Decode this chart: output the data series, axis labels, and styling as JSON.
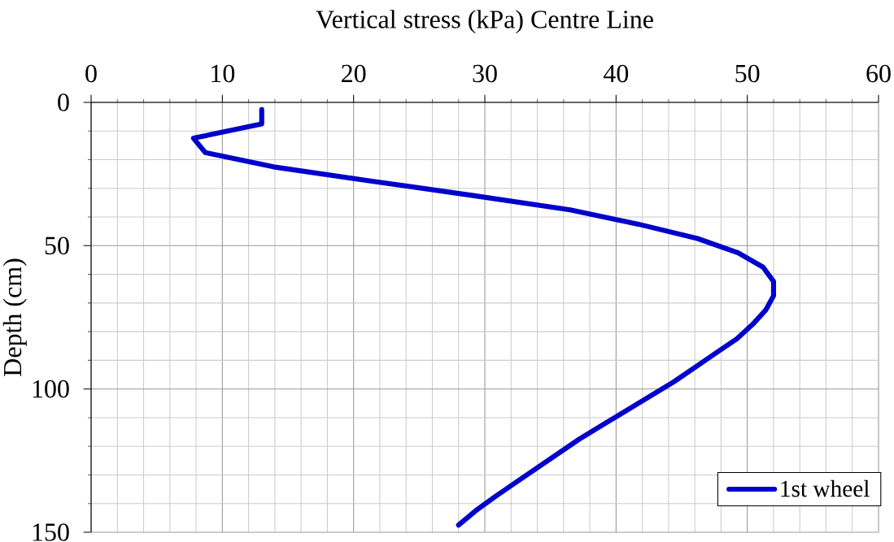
{
  "chart_data": {
    "type": "line",
    "xlabel": "Vertical stress (kPa) Centre Line",
    "ylabel": "Depth (cm)",
    "series": [
      {
        "name": "1st wheel",
        "color": "#0000cc",
        "x": [
          13,
          13,
          7.8,
          8.7,
          13.9,
          21.4,
          29.1,
          36.5,
          41.7,
          46.2,
          49.3,
          51.2,
          52,
          52,
          51.4,
          50.4,
          49.2,
          47.6,
          46,
          44.4,
          42.6,
          40.8,
          39,
          37.2,
          35.6,
          34,
          32.4,
          30.8,
          29.3,
          28
        ],
        "values": [
          2.5,
          7.5,
          12.5,
          17.5,
          22.5,
          27.5,
          32.5,
          37.5,
          42.5,
          47.5,
          52.5,
          57.5,
          62.5,
          67.5,
          72.5,
          77.5,
          82.5,
          87.5,
          92.5,
          97.5,
          102.5,
          107.5,
          112.5,
          117.5,
          122.5,
          127.5,
          132.5,
          137.5,
          142.5,
          147.5
        ]
      }
    ],
    "xlim": [
      0,
      60
    ],
    "xticks": [
      0,
      {
        "value": 2,
        "label": null
      },
      {
        "value": 4,
        "label": null
      },
      {
        "value": 6,
        "label": null
      },
      {
        "value": 8,
        "label": null
      },
      10,
      {
        "value": 12,
        "label": null
      },
      {
        "value": 14,
        "label": null
      },
      {
        "value": 16,
        "label": null
      },
      {
        "value": 18,
        "label": null
      },
      20,
      {
        "value": 22,
        "label": null
      },
      {
        "value": 24,
        "label": null
      },
      {
        "value": 26,
        "label": null
      },
      {
        "value": 28,
        "label": null
      },
      30,
      {
        "value": 32,
        "label": null
      },
      {
        "value": 34,
        "label": null
      },
      {
        "value": 36,
        "label": null
      },
      {
        "value": 38,
        "label": null
      },
      40,
      {
        "value": 42,
        "label": null
      },
      {
        "value": 44,
        "label": null
      },
      {
        "value": 46,
        "label": null
      },
      {
        "value": 48,
        "label": null
      },
      50,
      {
        "value": 52,
        "label": null
      },
      {
        "value": 54,
        "label": null
      },
      {
        "value": 56,
        "label": null
      },
      {
        "value": 58,
        "label": null
      },
      60
    ],
    "ylim": [
      150,
      0
    ],
    "yticks": [
      0,
      {
        "value": 10,
        "label": null
      },
      {
        "value": 20,
        "label": null
      },
      {
        "value": 30,
        "label": null
      },
      {
        "value": 40,
        "label": null
      },
      50,
      {
        "value": 60,
        "label": null
      },
      {
        "value": 70,
        "label": null
      },
      {
        "value": 80,
        "label": null
      },
      {
        "value": 90,
        "label": null
      },
      100,
      {
        "value": 110,
        "label": null
      },
      {
        "value": 120,
        "label": null
      },
      {
        "value": 130,
        "label": null
      },
      {
        "value": 140,
        "label": null
      },
      150
    ],
    "grid": true,
    "legend": "bottom right",
    "line_style": "solid"
  }
}
